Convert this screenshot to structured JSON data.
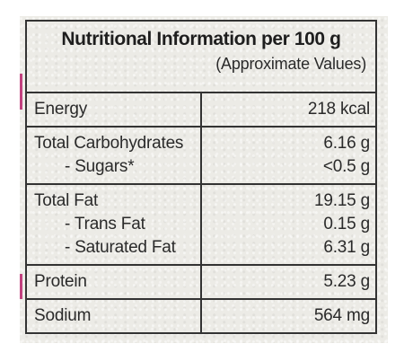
{
  "title": "Nutritional Information per 100 g",
  "subtitle": "(Approximate Values)",
  "rows": [
    {
      "name": "Energy",
      "value": "218 kcal",
      "sub": []
    },
    {
      "name": "Total Carbohydrates",
      "value": "6.16 g",
      "sub": [
        {
          "name": "- Sugars*",
          "value": "<0.5 g"
        }
      ]
    },
    {
      "name": "Total Fat",
      "value": "19.15 g",
      "sub": [
        {
          "name": "- Trans Fat",
          "value": "0.15 g"
        },
        {
          "name": "- Saturated Fat",
          "value": "6.31 g"
        }
      ]
    },
    {
      "name": "Protein",
      "value": "5.23 g",
      "sub": []
    },
    {
      "name": "Sodium",
      "value": "564 mg",
      "sub": []
    }
  ]
}
